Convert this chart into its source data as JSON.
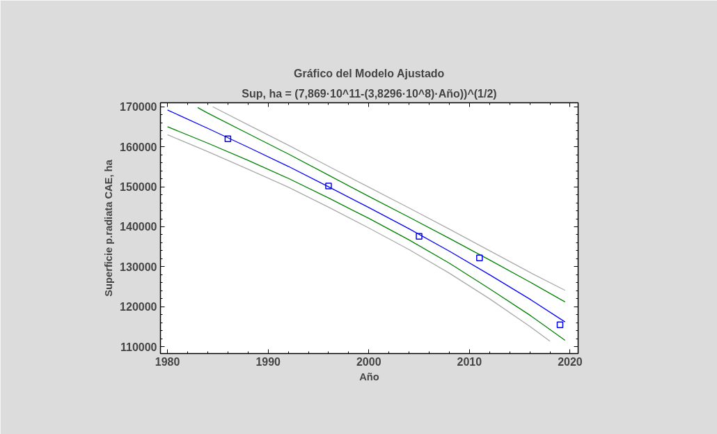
{
  "chart_data": {
    "type": "line",
    "title": "Gráfico del Modelo Ajustado",
    "subtitle": "Sup, ha = (7,869·10^11-(3,8296·10^8)·Año))^(1/2)",
    "xlabel": "Año",
    "ylabel": "Superficie p.radiata CAE, ha",
    "xlim": [
      1979.3,
      2020.8
    ],
    "ylim": [
      108300,
      171000
    ],
    "xticks": [
      1980,
      1990,
      2000,
      2010,
      2020
    ],
    "yticks": [
      110000,
      120000,
      130000,
      140000,
      150000,
      160000,
      170000
    ],
    "grid": false,
    "series": [
      {
        "color": "#a9a9a9",
        "x": [
          1984.5,
          1988,
          1992,
          1996,
          2000,
          2004,
          2008,
          2012,
          2016,
          2019.5
        ],
        "values": [
          170000,
          165500,
          160400,
          155100,
          149900,
          144700,
          139400,
          134000,
          128600,
          124100
        ]
      },
      {
        "color": "#a9a9a9",
        "x": [
          1980,
          1984,
          1988,
          1992,
          1996,
          2000,
          2004,
          2008,
          2012,
          2016,
          2018
        ],
        "values": [
          163000,
          158800,
          154400,
          149900,
          144900,
          139700,
          134300,
          128400,
          122000,
          115100,
          111400
        ]
      },
      {
        "color": "#008000",
        "x": [
          1983,
          1984,
          1988,
          1992,
          1996,
          2000,
          2004,
          2008,
          2012,
          2016,
          2019.5
        ],
        "values": [
          169800,
          168400,
          163300,
          158200,
          152900,
          147600,
          142400,
          137100,
          131700,
          126200,
          121200
        ]
      },
      {
        "color": "#008000",
        "x": [
          1980,
          1984,
          1988,
          1992,
          1996,
          2000,
          2004,
          2008,
          2012,
          2016,
          2019.5
        ],
        "values": [
          165000,
          160900,
          156600,
          152100,
          147200,
          142100,
          136700,
          130900,
          124500,
          117900,
          111600
        ]
      },
      {
        "color": "#0000ff",
        "x": [
          1980,
          1984,
          1988,
          1992,
          1996,
          2000,
          2004,
          2008,
          2012,
          2016,
          2019.5
        ],
        "values": [
          169200,
          164600,
          159900,
          155100,
          150000,
          144800,
          139500,
          133900,
          128000,
          121900,
          116200
        ]
      },
      {
        "type": "scatter",
        "marker": "square",
        "color": "#0000ff",
        "x": [
          1986,
          1996,
          2005,
          2011,
          2019
        ],
        "values": [
          162000,
          150200,
          137600,
          132200,
          115500
        ]
      }
    ]
  }
}
